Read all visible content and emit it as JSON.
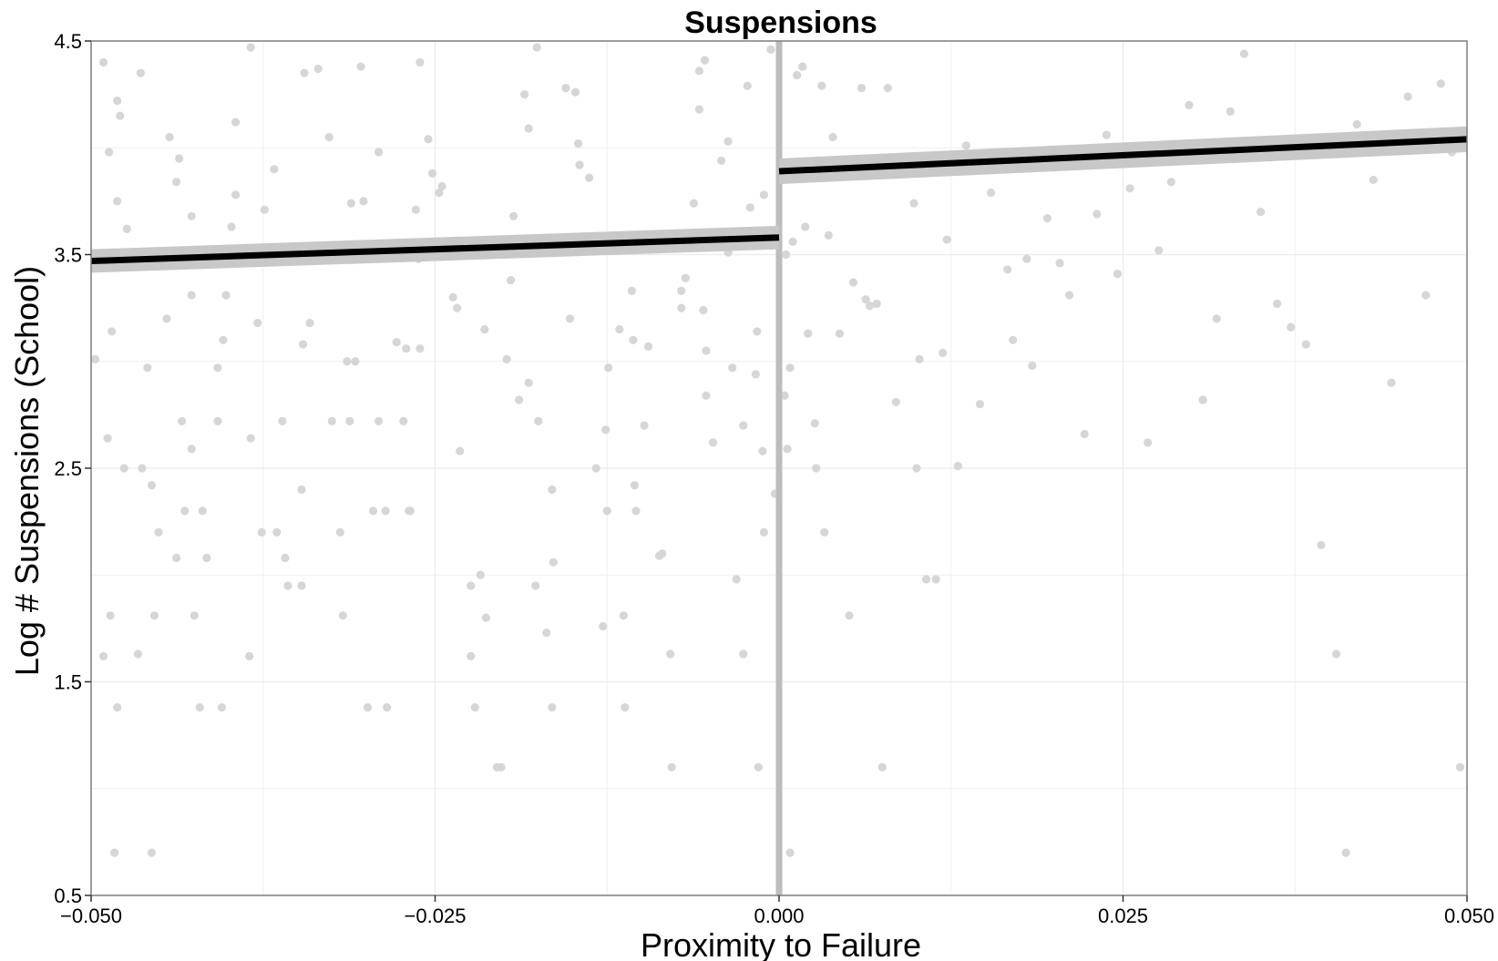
{
  "chart_data": {
    "type": "scatter",
    "title": "Suspensions",
    "xlabel": "Proximity to Failure",
    "ylabel": "Log # Suspensions (School)",
    "xlim": [
      -0.05,
      0.05
    ],
    "ylim": [
      0.5,
      4.5
    ],
    "x_ticks": [
      -0.05,
      -0.025,
      0.0,
      0.025,
      0.05
    ],
    "x_tick_labels": [
      "−0.050",
      "−0.025",
      "0.000",
      "0.025",
      "0.050"
    ],
    "y_ticks": [
      0.5,
      1.5,
      2.5,
      3.5,
      4.5
    ],
    "y_tick_labels": [
      "0.5",
      "1.5",
      "2.5",
      "3.5",
      "4.5"
    ],
    "y_minor_ticks": [
      1.0,
      2.0,
      3.0,
      4.0
    ],
    "x_minor_ticks": [
      -0.0375,
      -0.0125,
      0.0125,
      0.0375
    ],
    "grid": true,
    "cutoff_x": 0.0,
    "colors": {
      "points": "#d6d6d6",
      "fit_line": "#000000",
      "ci_band": "#c8c8c8",
      "cutoff_line": "#bdbdbd",
      "grid": "#ebebeb",
      "panel_border": "#7f7f7f"
    },
    "fit_lines": [
      {
        "side": "left",
        "x": [
          -0.05,
          0.0
        ],
        "y": [
          3.47,
          3.58
        ],
        "ci_halfwidth": 0.055
      },
      {
        "side": "right",
        "x": [
          0.0,
          0.05
        ],
        "y": [
          3.89,
          4.04
        ],
        "ci_halfwidth": 0.06
      }
    ],
    "points": [
      [
        -0.0491,
        4.4
      ],
      [
        -0.0481,
        4.22
      ],
      [
        -0.0479,
        4.15
      ],
      [
        -0.0487,
        3.98
      ],
      [
        -0.0481,
        3.75
      ],
      [
        -0.0474,
        3.62
      ],
      [
        -0.0485,
        3.14
      ],
      [
        -0.0497,
        3.01
      ],
      [
        -0.0476,
        2.5
      ],
      [
        -0.0463,
        2.5
      ],
      [
        -0.0488,
        2.64
      ],
      [
        -0.0486,
        1.81
      ],
      [
        -0.0491,
        1.62
      ],
      [
        -0.0481,
        1.38
      ],
      [
        -0.0483,
        0.7
      ],
      [
        -0.0451,
        2.2
      ],
      [
        -0.0456,
        2.42
      ],
      [
        -0.0459,
        2.97
      ],
      [
        -0.0466,
        1.63
      ],
      [
        -0.0454,
        1.81
      ],
      [
        -0.0456,
        0.7
      ],
      [
        -0.0464,
        4.35
      ],
      [
        -0.0443,
        4.05
      ],
      [
        -0.0438,
        3.84
      ],
      [
        -0.0436,
        3.95
      ],
      [
        -0.0427,
        3.68
      ],
      [
        -0.0427,
        3.31
      ],
      [
        -0.0445,
        3.2
      ],
      [
        -0.0434,
        2.72
      ],
      [
        -0.0427,
        2.59
      ],
      [
        -0.0432,
        2.3
      ],
      [
        -0.0438,
        2.08
      ],
      [
        -0.0419,
        2.3
      ],
      [
        -0.0425,
        1.81
      ],
      [
        -0.0421,
        1.38
      ],
      [
        -0.0405,
        1.38
      ],
      [
        -0.0416,
        2.08
      ],
      [
        -0.0408,
        2.72
      ],
      [
        -0.0402,
        3.31
      ],
      [
        -0.0404,
        3.1
      ],
      [
        -0.0408,
        2.97
      ],
      [
        -0.0398,
        3.63
      ],
      [
        -0.0395,
        3.78
      ],
      [
        -0.0395,
        4.12
      ],
      [
        -0.0384,
        4.47
      ],
      [
        -0.0379,
        3.18
      ],
      [
        -0.0384,
        2.64
      ],
      [
        -0.0385,
        1.62
      ],
      [
        -0.0376,
        2.2
      ],
      [
        -0.0374,
        3.71
      ],
      [
        -0.0367,
        3.9
      ],
      [
        -0.0361,
        2.72
      ],
      [
        -0.0365,
        2.2
      ],
      [
        -0.0359,
        2.08
      ],
      [
        -0.0357,
        1.95
      ],
      [
        -0.0347,
        1.95
      ],
      [
        -0.0347,
        2.4
      ],
      [
        -0.0346,
        3.08
      ],
      [
        -0.0341,
        3.18
      ],
      [
        -0.0335,
        4.37
      ],
      [
        -0.0345,
        4.35
      ],
      [
        -0.0327,
        4.05
      ],
      [
        -0.0325,
        2.72
      ],
      [
        -0.0319,
        2.2
      ],
      [
        -0.0312,
        2.72
      ],
      [
        -0.0317,
        1.81
      ],
      [
        -0.0314,
        3.0
      ],
      [
        -0.0308,
        3.0
      ],
      [
        -0.0311,
        3.74
      ],
      [
        -0.0302,
        3.75
      ],
      [
        -0.0291,
        3.98
      ],
      [
        -0.0304,
        4.38
      ],
      [
        -0.0291,
        2.72
      ],
      [
        -0.0286,
        2.3
      ],
      [
        -0.0295,
        2.3
      ],
      [
        -0.0299,
        1.38
      ],
      [
        -0.0285,
        1.38
      ],
      [
        -0.0269,
        2.3
      ],
      [
        -0.0273,
        2.72
      ],
      [
        -0.0268,
        2.3
      ],
      [
        -0.0271,
        3.06
      ],
      [
        -0.0261,
        3.06
      ],
      [
        -0.0278,
        3.09
      ],
      [
        -0.0262,
        3.48
      ],
      [
        -0.0264,
        3.71
      ],
      [
        -0.0261,
        4.4
      ],
      [
        -0.0247,
        3.79
      ],
      [
        -0.0255,
        4.04
      ],
      [
        -0.0245,
        3.82
      ],
      [
        -0.0252,
        3.88
      ],
      [
        -0.0237,
        3.3
      ],
      [
        -0.0234,
        3.25
      ],
      [
        -0.0232,
        2.58
      ],
      [
        -0.0224,
        1.95
      ],
      [
        -0.0224,
        1.62
      ],
      [
        -0.0221,
        1.38
      ],
      [
        -0.0213,
        1.8
      ],
      [
        -0.0205,
        1.1
      ],
      [
        -0.0202,
        1.1
      ],
      [
        -0.0214,
        3.15
      ],
      [
        -0.0217,
        2.0
      ],
      [
        -0.0198,
        3.01
      ],
      [
        -0.0195,
        3.38
      ],
      [
        -0.0193,
        3.68
      ],
      [
        -0.0185,
        4.25
      ],
      [
        -0.0182,
        4.09
      ],
      [
        -0.0176,
        4.47
      ],
      [
        -0.0189,
        2.82
      ],
      [
        -0.0175,
        2.72
      ],
      [
        -0.0165,
        2.4
      ],
      [
        -0.0164,
        2.06
      ],
      [
        -0.0165,
        1.38
      ],
      [
        -0.0169,
        1.73
      ],
      [
        -0.0182,
        2.9
      ],
      [
        -0.0177,
        1.95
      ],
      [
        -0.0152,
        3.2
      ],
      [
        -0.0152,
        3.58
      ],
      [
        -0.0148,
        4.26
      ],
      [
        -0.0146,
        4.02
      ],
      [
        -0.0155,
        4.28
      ],
      [
        -0.0145,
        3.92
      ],
      [
        -0.0142,
        3.55
      ],
      [
        -0.0138,
        3.86
      ],
      [
        -0.0133,
        2.5
      ],
      [
        -0.0126,
        2.68
      ],
      [
        -0.0125,
        2.3
      ],
      [
        -0.0124,
        2.97
      ],
      [
        -0.0128,
        1.76
      ],
      [
        -0.0113,
        1.81
      ],
      [
        -0.0112,
        1.38
      ],
      [
        -0.0116,
        3.15
      ],
      [
        -0.0107,
        3.33
      ],
      [
        -0.0105,
        2.42
      ],
      [
        -0.0104,
        2.3
      ],
      [
        -0.0106,
        3.1
      ],
      [
        -0.0095,
        3.07
      ],
      [
        -0.0098,
        2.7
      ],
      [
        -0.0087,
        2.09
      ],
      [
        -0.0085,
        2.1
      ],
      [
        -0.0079,
        1.63
      ],
      [
        -0.0078,
        1.1
      ],
      [
        -0.0071,
        3.25
      ],
      [
        -0.0071,
        3.33
      ],
      [
        -0.0068,
        3.39
      ],
      [
        -0.0062,
        3.74
      ],
      [
        -0.0058,
        4.18
      ],
      [
        -0.0058,
        4.36
      ],
      [
        -0.0054,
        4.41
      ],
      [
        -0.0055,
        3.24
      ],
      [
        -0.0053,
        3.05
      ],
      [
        -0.0053,
        2.84
      ],
      [
        -0.0048,
        2.62
      ],
      [
        -0.0042,
        3.94
      ],
      [
        -0.0037,
        4.03
      ],
      [
        -0.0037,
        3.51
      ],
      [
        -0.0034,
        2.97
      ],
      [
        -0.0031,
        1.98
      ],
      [
        -0.0026,
        2.7
      ],
      [
        -0.0026,
        1.63
      ],
      [
        -0.0023,
        4.29
      ],
      [
        -0.0021,
        3.72
      ],
      [
        -0.0017,
        2.94
      ],
      [
        -0.0016,
        3.14
      ],
      [
        -0.0015,
        1.1
      ],
      [
        -0.0012,
        2.58
      ],
      [
        -0.0011,
        2.2
      ],
      [
        -0.0011,
        3.78
      ],
      [
        -0.0006,
        4.46
      ],
      [
        -0.0003,
        2.38
      ],
      [
        0.0004,
        2.84
      ],
      [
        0.0005,
        3.5
      ],
      [
        0.0006,
        2.59
      ],
      [
        0.0008,
        0.7
      ],
      [
        0.0008,
        2.97
      ],
      [
        0.001,
        3.56
      ],
      [
        0.0013,
        4.34
      ],
      [
        0.0017,
        4.38
      ],
      [
        0.0019,
        3.63
      ],
      [
        0.0021,
        3.13
      ],
      [
        0.0026,
        2.71
      ],
      [
        0.0027,
        2.5
      ],
      [
        0.0031,
        4.29
      ],
      [
        0.0033,
        2.2
      ],
      [
        0.0036,
        3.59
      ],
      [
        0.0039,
        4.05
      ],
      [
        0.0044,
        3.13
      ],
      [
        0.0051,
        1.81
      ],
      [
        0.0054,
        3.37
      ],
      [
        0.0055,
        3.88
      ],
      [
        0.006,
        4.28
      ],
      [
        0.0063,
        3.29
      ],
      [
        0.0066,
        3.26
      ],
      [
        0.0071,
        3.27
      ],
      [
        0.0075,
        1.1
      ],
      [
        0.0079,
        4.28
      ],
      [
        0.0085,
        2.81
      ],
      [
        0.009,
        3.89
      ],
      [
        0.0098,
        3.74
      ],
      [
        0.01,
        2.5
      ],
      [
        0.0102,
        3.01
      ],
      [
        0.0107,
        1.98
      ],
      [
        0.0114,
        1.98
      ],
      [
        0.0119,
        3.04
      ],
      [
        0.0122,
        3.57
      ],
      [
        0.0127,
        3.91
      ],
      [
        0.013,
        2.51
      ],
      [
        0.0136,
        4.01
      ],
      [
        0.0146,
        2.8
      ],
      [
        0.0154,
        3.79
      ],
      [
        0.0166,
        3.43
      ],
      [
        0.017,
        3.1
      ],
      [
        0.018,
        3.48
      ],
      [
        0.0184,
        2.98
      ],
      [
        0.0195,
        3.67
      ],
      [
        0.0204,
        3.46
      ],
      [
        0.0211,
        3.31
      ],
      [
        0.0222,
        2.66
      ],
      [
        0.0231,
        3.69
      ],
      [
        0.0238,
        4.06
      ],
      [
        0.0246,
        3.41
      ],
      [
        0.0255,
        3.81
      ],
      [
        0.0268,
        2.62
      ],
      [
        0.0276,
        3.52
      ],
      [
        0.0285,
        3.84
      ],
      [
        0.0298,
        4.2
      ],
      [
        0.0308,
        2.82
      ],
      [
        0.0318,
        3.2
      ],
      [
        0.0328,
        4.17
      ],
      [
        0.0338,
        4.44
      ],
      [
        0.035,
        3.7
      ],
      [
        0.0362,
        3.27
      ],
      [
        0.0372,
        3.16
      ],
      [
        0.0383,
        3.08
      ],
      [
        0.0394,
        2.14
      ],
      [
        0.0405,
        1.63
      ],
      [
        0.0412,
        0.7
      ],
      [
        0.042,
        4.11
      ],
      [
        0.0432,
        3.85
      ],
      [
        0.0445,
        2.9
      ],
      [
        0.0457,
        4.24
      ],
      [
        0.047,
        3.31
      ],
      [
        0.0481,
        4.3
      ],
      [
        0.0489,
        3.98
      ],
      [
        0.0495,
        1.1
      ]
    ]
  }
}
